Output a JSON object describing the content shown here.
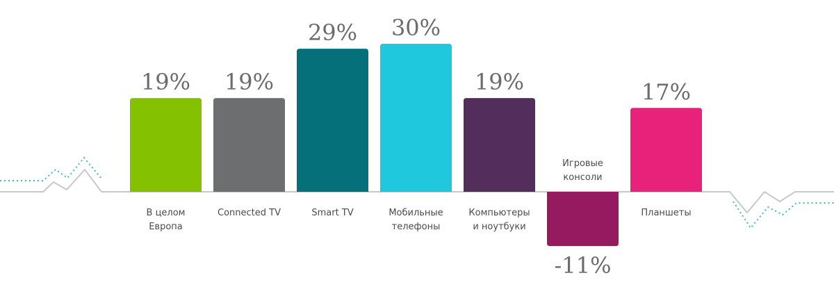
{
  "chart_data": {
    "type": "bar",
    "title": "",
    "xlabel": "",
    "ylabel": "",
    "ylim": [
      -11,
      30
    ],
    "grid": false,
    "legend": "none",
    "bars": [
      {
        "lines": [
          "В целом",
          "Европа"
        ],
        "value": 19,
        "label": "19%",
        "color": "#84c100"
      },
      {
        "lines": [
          "Connected TV"
        ],
        "value": 19,
        "label": "19%",
        "color": "#6d6e70"
      },
      {
        "lines": [
          "Smart TV"
        ],
        "value": 29,
        "label": "29%",
        "color": "#05707a"
      },
      {
        "lines": [
          "Мобильные",
          "телефоны"
        ],
        "value": 30,
        "label": "30%",
        "color": "#1fc8dc"
      },
      {
        "lines": [
          "Компьютеры",
          "и ноутбуки"
        ],
        "value": 19,
        "label": "19%",
        "color": "#532e5c"
      },
      {
        "lines": [
          "Игровые",
          "консоли"
        ],
        "value": -11,
        "label": "-11%",
        "color": "#951a5f"
      },
      {
        "lines": [
          "Планшеты"
        ],
        "value": 17,
        "label": "17%",
        "color": "#e8217a"
      }
    ]
  },
  "colors": {
    "baseline": "#c8c8c8",
    "dotted": "#3ab7c6",
    "value_text": "#6b6b6b",
    "category_text": "#4a4a4a"
  }
}
